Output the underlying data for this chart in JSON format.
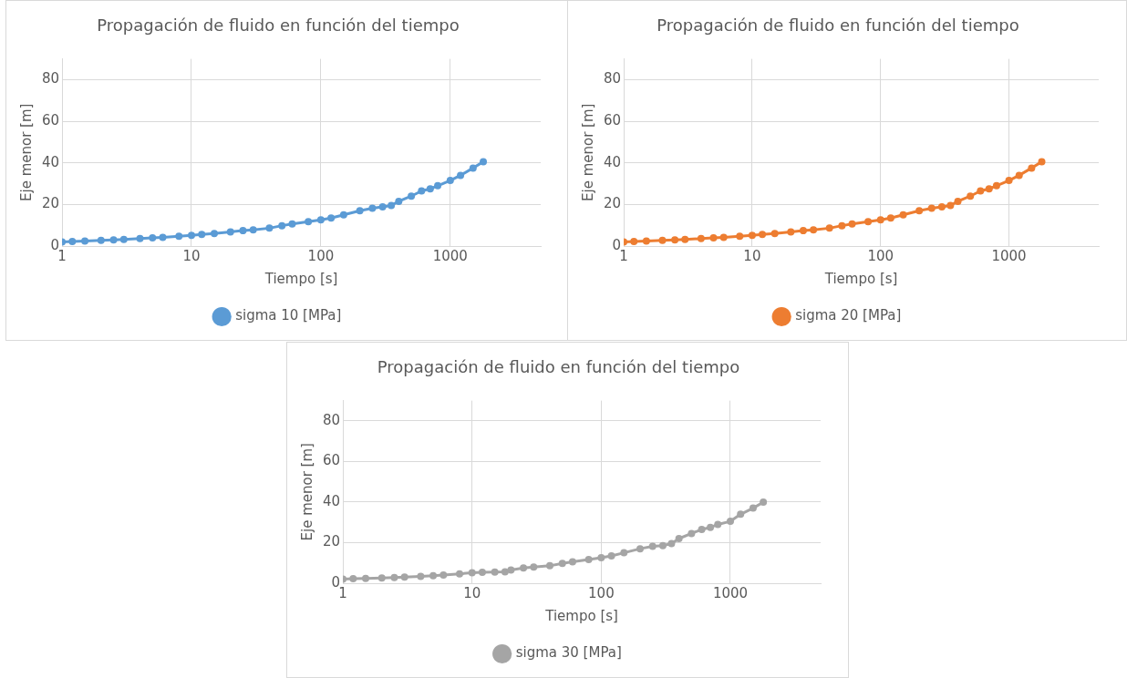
{
  "chart_data": [
    {
      "type": "line",
      "title": "Propagación de fluido en función del tiempo",
      "xlabel": "Tiempo [s]",
      "ylabel": "Eje menor [m]",
      "log": "x",
      "xlim": [
        1,
        5000
      ],
      "xticks": [
        1,
        10,
        100,
        1000
      ],
      "ylim": [
        0,
        90
      ],
      "yticks": [
        0,
        20,
        40,
        60,
        80
      ],
      "grid": true,
      "legend": "bottom",
      "marker": "circle",
      "series": [
        {
          "name": "sigma 10 [MPa]",
          "color": "#5b9bd5",
          "x": [
            1,
            1.2,
            1.5,
            2,
            2.5,
            3,
            4,
            5,
            6,
            8,
            10,
            12,
            15,
            20,
            25,
            30,
            40,
            50,
            60,
            80,
            100,
            120,
            150,
            200,
            250,
            300,
            350,
            400,
            500,
            600,
            700,
            800,
            1000,
            1200,
            1500,
            1800
          ],
          "values": [
            2.0,
            2.2,
            2.4,
            2.7,
            3.0,
            3.2,
            3.6,
            3.9,
            4.2,
            4.7,
            5.2,
            5.6,
            6.0,
            6.8,
            7.4,
            7.8,
            8.6,
            9.8,
            10.6,
            11.7,
            12.6,
            13.5,
            15.0,
            17.0,
            18.2,
            18.8,
            19.5,
            21.5,
            24.0,
            26.5,
            27.5,
            29.0,
            31.5,
            34.0,
            37.5,
            40.5
          ]
        }
      ]
    },
    {
      "type": "line",
      "title": "Propagación de fluido en función del tiempo",
      "xlabel": "Tiempo [s]",
      "ylabel": "Eje menor [m]",
      "log": "x",
      "xlim": [
        1,
        5000
      ],
      "xticks": [
        1,
        10,
        100,
        1000
      ],
      "ylim": [
        0,
        90
      ],
      "yticks": [
        0,
        20,
        40,
        60,
        80
      ],
      "grid": true,
      "legend": "bottom",
      "marker": "circle",
      "series": [
        {
          "name": "sigma 20 [MPa]",
          "color": "#ed7d31",
          "x": [
            1,
            1.2,
            1.5,
            2,
            2.5,
            3,
            4,
            5,
            6,
            8,
            10,
            12,
            15,
            20,
            25,
            30,
            40,
            50,
            60,
            80,
            100,
            120,
            150,
            200,
            250,
            300,
            350,
            400,
            500,
            600,
            700,
            800,
            1000,
            1200,
            1500,
            1800
          ],
          "values": [
            2.0,
            2.2,
            2.4,
            2.7,
            3.0,
            3.2,
            3.6,
            3.9,
            4.2,
            4.7,
            5.2,
            5.6,
            6.0,
            6.8,
            7.4,
            7.8,
            8.6,
            9.8,
            10.6,
            11.7,
            12.6,
            13.5,
            15.0,
            17.0,
            18.2,
            18.8,
            19.5,
            21.5,
            24.0,
            26.5,
            27.5,
            29.0,
            31.5,
            34.0,
            37.5,
            40.5
          ]
        }
      ]
    },
    {
      "type": "line",
      "title": "Propagación de fluido en función del tiempo",
      "xlabel": "Tiempo [s]",
      "ylabel": "Eje menor [m]",
      "log": "x",
      "xlim": [
        1,
        5000
      ],
      "xticks": [
        1,
        10,
        100,
        1000
      ],
      "ylim": [
        0,
        90
      ],
      "yticks": [
        0,
        20,
        40,
        60,
        80
      ],
      "grid": true,
      "legend": "bottom",
      "marker": "circle",
      "series": [
        {
          "name": "sigma 30 [MPa]",
          "color": "#a5a5a5",
          "x": [
            1,
            1.2,
            1.5,
            2,
            2.5,
            3,
            4,
            5,
            6,
            8,
            10,
            12,
            15,
            18,
            20,
            25,
            30,
            40,
            50,
            60,
            80,
            100,
            120,
            150,
            200,
            250,
            300,
            350,
            400,
            500,
            600,
            700,
            800,
            1000,
            1200,
            1500,
            1800
          ],
          "values": [
            2.0,
            2.2,
            2.4,
            2.6,
            2.8,
            3.0,
            3.4,
            3.7,
            4.0,
            4.6,
            5.2,
            5.4,
            5.5,
            5.6,
            6.5,
            7.5,
            8.0,
            8.6,
            9.8,
            10.6,
            11.7,
            12.6,
            13.5,
            15.0,
            17.0,
            18.2,
            18.5,
            19.5,
            22.0,
            24.5,
            26.5,
            27.5,
            29.0,
            30.5,
            34.0,
            37.0,
            40.0
          ]
        }
      ]
    }
  ]
}
